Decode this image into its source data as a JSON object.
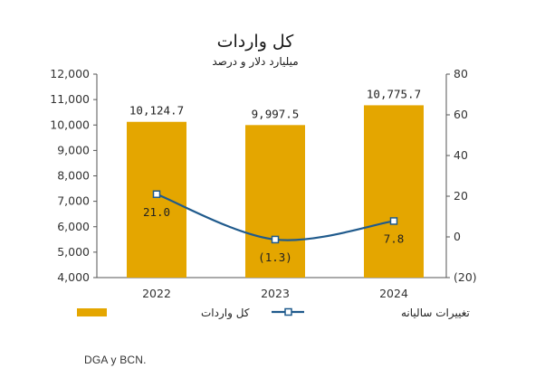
{
  "chart_data": {
    "type": "bar",
    "title": "کل واردات",
    "subtitle": "میلیارد دلار و درصد",
    "categories": [
      "2022",
      "2023",
      "2024"
    ],
    "series": [
      {
        "name": "کل واردات",
        "type": "bar",
        "axis": "left",
        "values": [
          10124.7,
          9997.5,
          10775.7
        ],
        "labels": [
          "10,124.7",
          "9,997.5",
          "10,775.7"
        ],
        "color": "#E4A600"
      },
      {
        "name": "تغییرات سالیانه",
        "type": "line",
        "axis": "right",
        "values": [
          21.0,
          -1.3,
          7.8
        ],
        "labels": [
          "21.0",
          "(1.3)",
          "7.8"
        ],
        "color": "#1F5A8C"
      }
    ],
    "y_left": {
      "range": [
        4000,
        12000
      ],
      "ticks": [
        4000,
        5000,
        6000,
        7000,
        8000,
        9000,
        10000,
        11000,
        12000
      ],
      "tick_labels": [
        "4,000",
        "5,000",
        "6,000",
        "7,000",
        "8,000",
        "9,000",
        "10,000",
        "11,000",
        "12,000"
      ]
    },
    "y_right": {
      "range": [
        -20,
        80
      ],
      "ticks": [
        -20,
        0,
        20,
        40,
        60,
        80
      ],
      "tick_labels": [
        "(20)",
        "0",
        "20",
        "40",
        "60",
        "80"
      ]
    },
    "grid": false,
    "legend_position": "bottom"
  },
  "source_text": "DGA y BCN."
}
